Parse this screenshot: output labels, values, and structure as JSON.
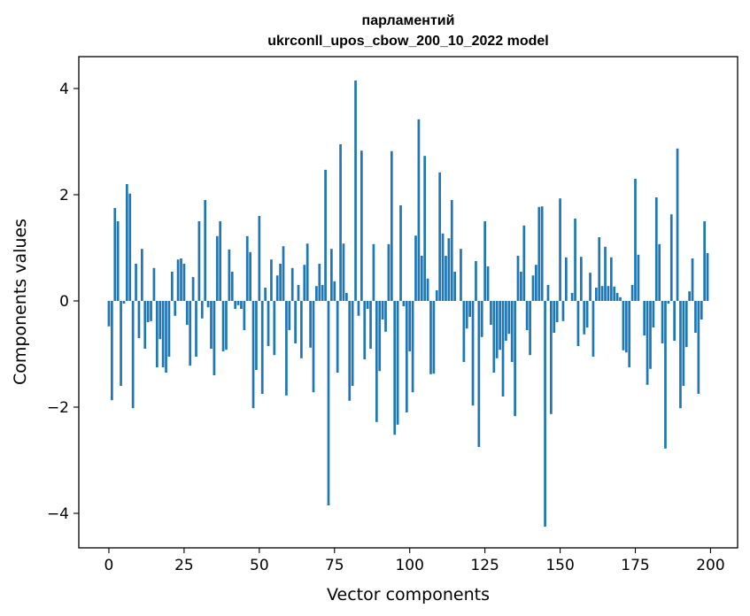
{
  "chart_data": {
    "type": "bar",
    "title": "парламентий",
    "subtitle": "ukrconll_upos_cbow_200_10_2022 model",
    "xlabel": "Vector components",
    "ylabel": "Components values",
    "xlim": [
      -10,
      209
    ],
    "ylim": [
      -4.65,
      4.6
    ],
    "xticks": [
      0,
      25,
      50,
      75,
      100,
      125,
      150,
      175,
      200
    ],
    "xtick_labels": [
      "0",
      "25",
      "50",
      "75",
      "100",
      "125",
      "150",
      "175",
      "200"
    ],
    "yticks": [
      4,
      2,
      0,
      -2,
      -4
    ],
    "ytick_labels": [
      "4",
      "2",
      "0",
      "−2",
      "−4"
    ],
    "bar_color": "#1f77b4",
    "x": [
      0,
      1,
      2,
      3,
      4,
      5,
      6,
      7,
      8,
      9,
      10,
      11,
      12,
      13,
      14,
      15,
      16,
      17,
      18,
      19,
      20,
      21,
      22,
      23,
      24,
      25,
      26,
      27,
      28,
      29,
      30,
      31,
      32,
      33,
      34,
      35,
      36,
      37,
      38,
      39,
      40,
      41,
      42,
      43,
      44,
      45,
      46,
      47,
      48,
      49,
      50,
      51,
      52,
      53,
      54,
      55,
      56,
      57,
      58,
      59,
      60,
      61,
      62,
      63,
      64,
      65,
      66,
      67,
      68,
      69,
      70,
      71,
      72,
      73,
      74,
      75,
      76,
      77,
      78,
      79,
      80,
      81,
      82,
      83,
      84,
      85,
      86,
      87,
      88,
      89,
      90,
      91,
      92,
      93,
      94,
      95,
      96,
      97,
      98,
      99,
      100,
      101,
      102,
      103,
      104,
      105,
      106,
      107,
      108,
      109,
      110,
      111,
      112,
      113,
      114,
      115,
      116,
      117,
      118,
      119,
      120,
      121,
      122,
      123,
      124,
      125,
      126,
      127,
      128,
      129,
      130,
      131,
      132,
      133,
      134,
      135,
      136,
      137,
      138,
      139,
      140,
      141,
      142,
      143,
      144,
      145,
      146,
      147,
      148,
      149,
      150,
      151,
      152,
      153,
      154,
      155,
      156,
      157,
      158,
      159,
      160,
      161,
      162,
      163,
      164,
      165,
      166,
      167,
      168,
      169,
      170,
      171,
      172,
      173,
      174,
      175,
      176,
      177,
      178,
      179,
      180,
      181,
      182,
      183,
      184,
      185,
      186,
      187,
      188,
      189,
      190,
      191,
      192,
      193,
      194,
      195,
      196,
      197,
      198,
      199
    ],
    "values": [
      -0.48,
      -1.87,
      1.75,
      1.5,
      -1.6,
      -0.05,
      2.2,
      2.02,
      -2.02,
      0.7,
      -0.7,
      0.98,
      -0.9,
      -0.4,
      -0.38,
      0.62,
      -1.25,
      -0.72,
      -1.25,
      -1.35,
      -1.05,
      0.55,
      -0.28,
      0.78,
      0.8,
      0.7,
      -0.45,
      -1.22,
      0.45,
      -1.05,
      1.5,
      -0.33,
      1.9,
      -0.12,
      -0.9,
      -1.4,
      1.22,
      1.5,
      -0.95,
      -0.92,
      0.97,
      0.55,
      -0.15,
      -0.08,
      -0.15,
      -0.55,
      1.22,
      0.92,
      -2.02,
      -1.3,
      1.6,
      -1.75,
      0.25,
      -0.85,
      0.78,
      -1.02,
      0.48,
      0.7,
      1.03,
      -1.78,
      -0.55,
      0.62,
      -0.8,
      0.3,
      -1.08,
      0.68,
      1.08,
      -0.88,
      -1.72,
      0.28,
      0.7,
      0.3,
      2.47,
      -3.85,
      0.98,
      0.37,
      -1.35,
      2.95,
      1.08,
      0.15,
      -1.88,
      -1.6,
      4.15,
      -0.28,
      2.83,
      -1.1,
      -0.15,
      -0.9,
      1.07,
      -2.28,
      -1.32,
      -0.35,
      -0.58,
      1.07,
      2.82,
      -2.52,
      -2.33,
      1.8,
      -0.1,
      -2.1,
      -0.95,
      -1.72,
      1.23,
      3.42,
      0.85,
      2.73,
      0.42,
      -1.38,
      -1.37,
      0.2,
      2.42,
      1.27,
      0.85,
      1.18,
      1.9,
      0.55,
      0.0,
      0.98,
      -1.15,
      -0.52,
      -0.3,
      -1.97,
      0.75,
      -2.75,
      -0.68,
      1.5,
      0.65,
      -0.45,
      -1.35,
      -1.08,
      -0.92,
      -1.8,
      -0.75,
      -0.62,
      -1.15,
      -2.17,
      0.85,
      0.55,
      1.42,
      -0.55,
      -1.02,
      0.48,
      0.68,
      1.77,
      1.78,
      -4.25,
      0.3,
      -2.13,
      -0.6,
      -0.4,
      1.93,
      -0.38,
      0.82,
      0.0,
      0.15,
      1.55,
      -0.85,
      0.83,
      -0.63,
      -0.5,
      0.53,
      -1.05,
      0.25,
      1.2,
      0.28,
      1.02,
      0.28,
      0.82,
      0.27,
      0.15,
      0.07,
      -0.93,
      -0.97,
      -1.25,
      0.3,
      2.3,
      0.87,
      0.0,
      -0.65,
      -1.58,
      -1.28,
      -0.5,
      1.95,
      1.07,
      -0.8,
      -2.78,
      -0.05,
      1.63,
      -0.75,
      2.87,
      -2.02,
      -1.6,
      -0.87,
      0.18,
      0.8,
      -0.6,
      -1.75,
      -0.35,
      1.5,
      0.9
    ]
  }
}
